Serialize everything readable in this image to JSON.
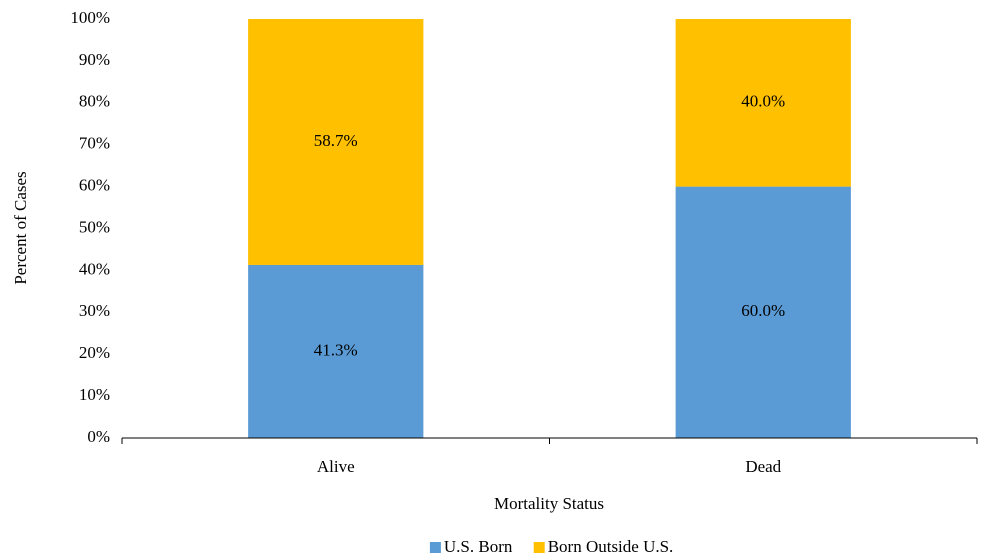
{
  "chart_data": {
    "type": "stacked_bar",
    "x_label": "Mortality Status",
    "y_label": "Percent of Cases",
    "categories": [
      "Alive",
      "Dead"
    ],
    "series": [
      {
        "name": "U.S. Born",
        "color": "#5b9bd5",
        "values": [
          41.3,
          60.0
        ],
        "value_labels": [
          "41.3%",
          "60.0%"
        ]
      },
      {
        "name": "Born Outside U.S.",
        "color": "#ffc000",
        "values": [
          58.7,
          40.0
        ],
        "value_labels": [
          "58.7%",
          "40.0%"
        ]
      }
    ],
    "ylim": [
      0,
      100
    ],
    "yticks": [
      {
        "value": 0,
        "label": "0%"
      },
      {
        "value": 10,
        "label": "10%"
      },
      {
        "value": 20,
        "label": "20%"
      },
      {
        "value": 30,
        "label": "30%"
      },
      {
        "value": 40,
        "label": "40%"
      },
      {
        "value": 50,
        "label": "50%"
      },
      {
        "value": 60,
        "label": "60%"
      },
      {
        "value": 70,
        "label": "70%"
      },
      {
        "value": 80,
        "label": "80%"
      },
      {
        "value": 90,
        "label": "90%"
      },
      {
        "value": 100,
        "label": "100%"
      }
    ],
    "grid": false,
    "legend": "bottom"
  }
}
